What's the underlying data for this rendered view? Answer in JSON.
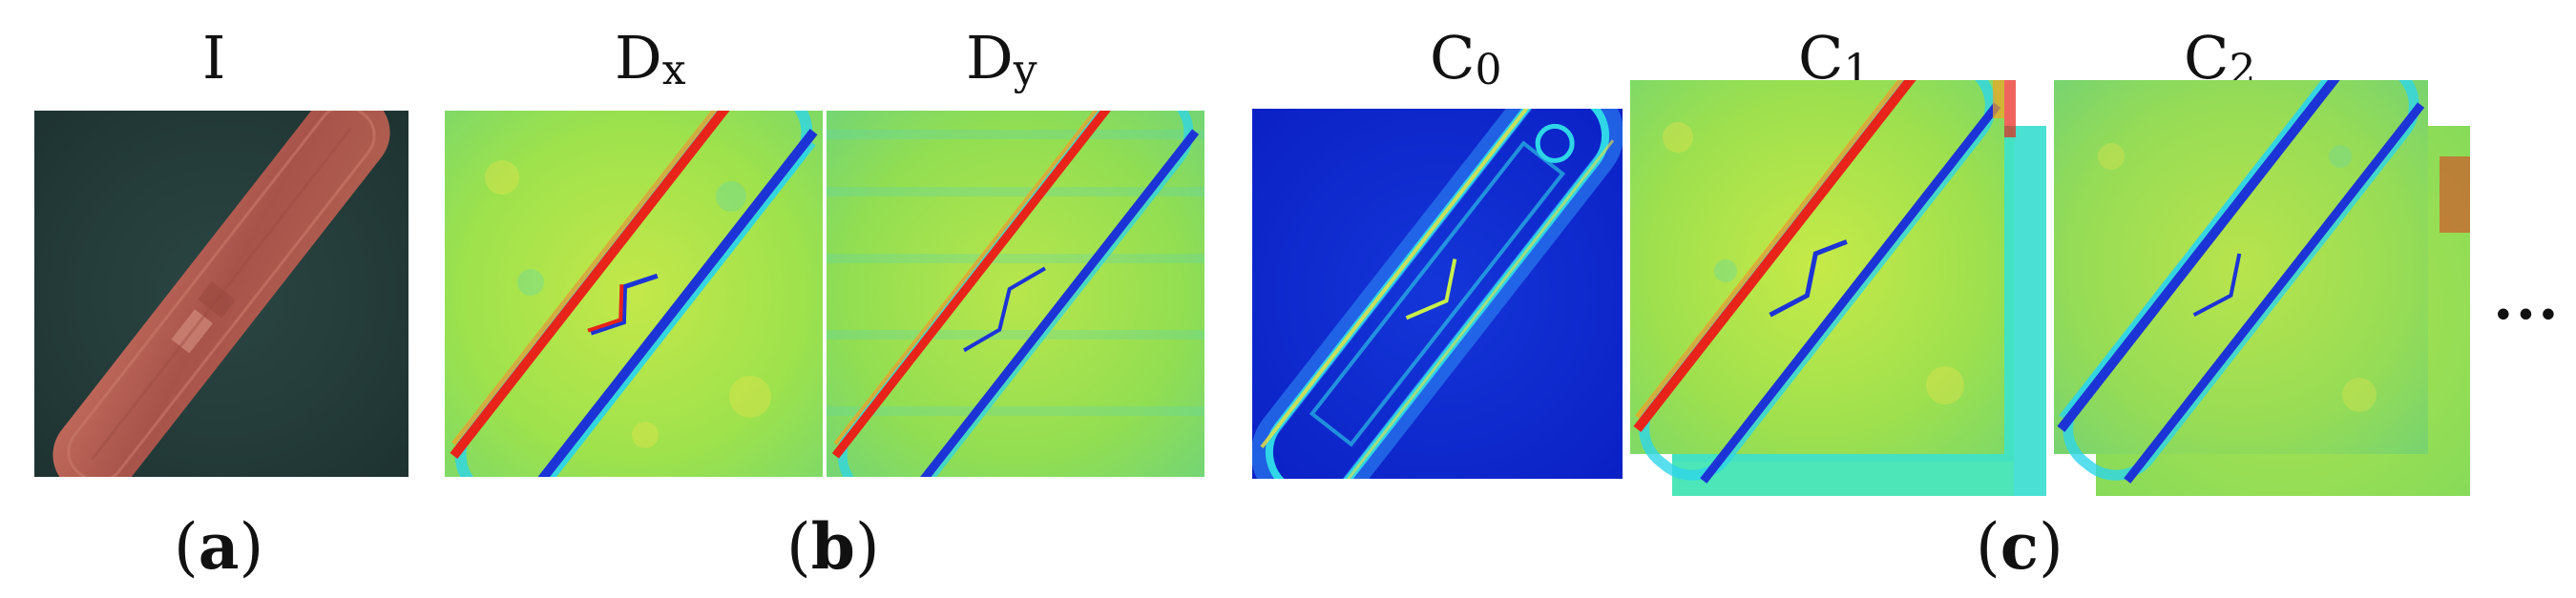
{
  "labels": {
    "image": "I",
    "dx_base": "D",
    "dx_sub": "x",
    "dy_base": "D",
    "dy_sub": "y",
    "c0_base": "C",
    "c0_sub": "0",
    "c1_base": "C",
    "c1_sub": "1",
    "c2_base": "C",
    "c2_sub": "2",
    "ellipsis": "..."
  },
  "captions": {
    "a_open": "(",
    "a_letter": "a",
    "a_close": ")",
    "b_open": "(",
    "b_letter": "b",
    "b_close": ")",
    "c_open": "(",
    "c_letter": "c",
    "c_close": ")"
  },
  "colors": {
    "jet_background_green": "#8ee04a",
    "jet_background_blue": "#0a1fc4",
    "ship_hull": "#b4564a",
    "sea": "#243c3a",
    "edge_red": "#e8231a",
    "edge_blue": "#1c34d6",
    "edge_cyan": "#2ed6e8"
  },
  "icons": {
    "input": "ship-satellite-image",
    "dx": "x-derivative-heatmap",
    "dy": "y-derivative-heatmap",
    "c0": "channel-0-heatmap",
    "c1": "channel-1-heatmap-stack",
    "c2": "channel-2-heatmap-stack"
  }
}
